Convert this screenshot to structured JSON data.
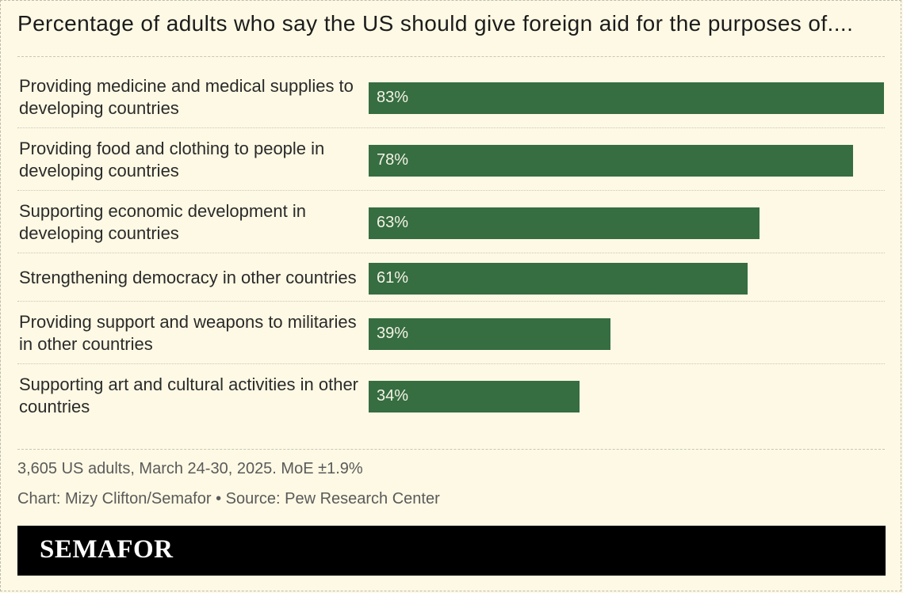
{
  "page": {
    "note": "3,605 US adults, March 24-30, 2025. MoE ±1.9%",
    "credit": "Chart: Mizy Clifton/Semafor • Source: Pew Research Center",
    "brand": "SEMAFOR"
  },
  "colors": {
    "background": "#fdf9e4",
    "bar": "#366d41",
    "bar_label": "#f5f3e6",
    "brand_bar": "#000000"
  },
  "chart_data": {
    "type": "bar",
    "orientation": "horizontal",
    "title": "Percentage of adults who say the US should give foreign aid for the purposes of....",
    "categories": [
      "Providing medicine and medical supplies to developing countries",
      "Providing food and clothing to people in developing countries",
      "Supporting economic development in developing countries",
      "Strengthening democracy in other countries",
      "Providing support and weapons to militaries in other countries",
      "Supporting art and cultural activities in other countries"
    ],
    "values": [
      83,
      78,
      63,
      61,
      39,
      34
    ],
    "value_labels": [
      "83%",
      "78%",
      "63%",
      "61%",
      "39%",
      "34%"
    ],
    "xlim": [
      0,
      83
    ],
    "grid": false
  }
}
